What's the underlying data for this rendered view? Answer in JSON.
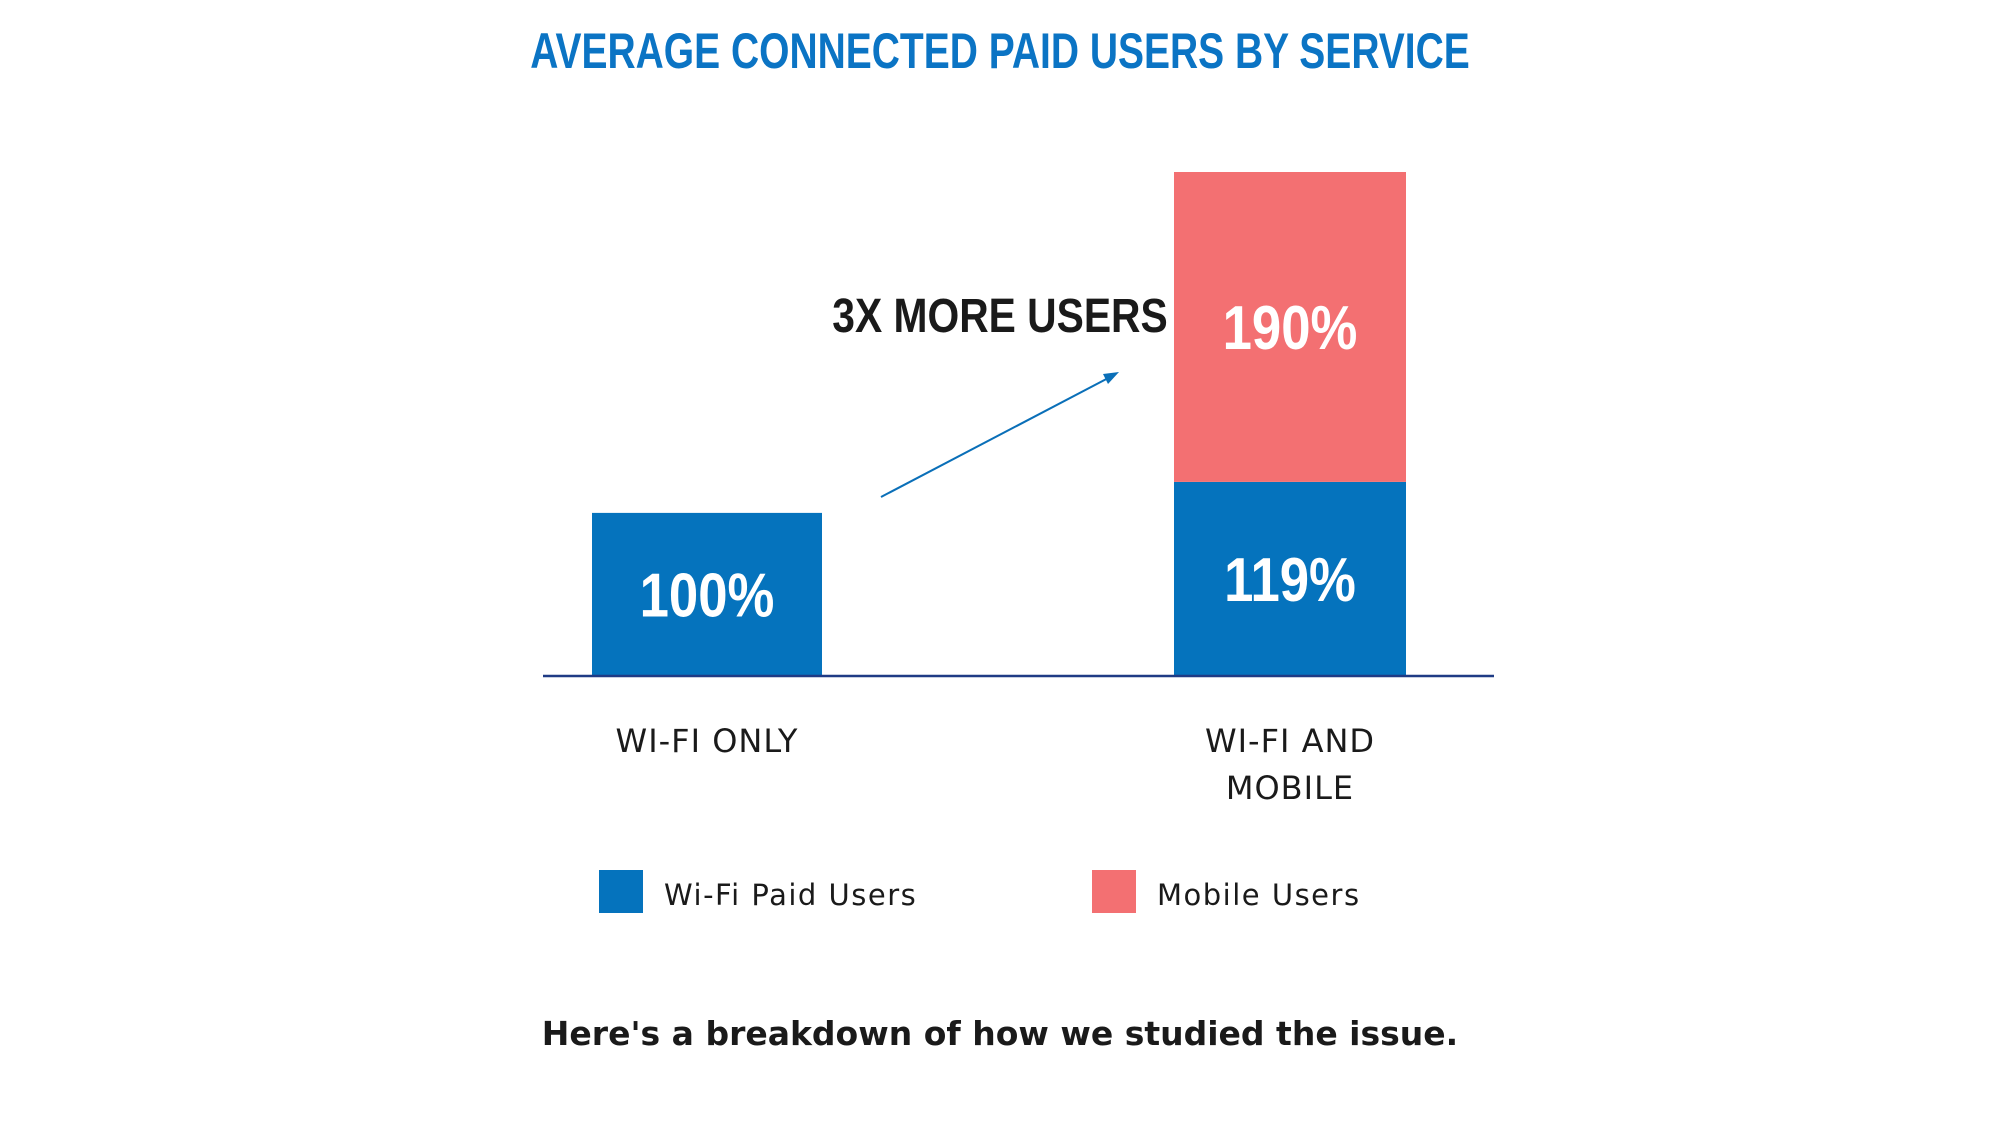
{
  "colors": {
    "blue": "#0573bd",
    "red": "#f37072",
    "title": "#0b74c4",
    "axis": "#1f3b85",
    "arrow": "#0a6fb8",
    "text": "#1a1a1a",
    "white": "#ffffff"
  },
  "chart_data": {
    "type": "bar",
    "stacked": true,
    "title": "AVERAGE CONNECTED PAID USERS BY SERVICE",
    "categories": [
      "WI-FI ONLY",
      "WI-FI AND MOBILE"
    ],
    "category_lines": [
      [
        "WI-FI ONLY"
      ],
      [
        "WI-FI AND",
        "MOBILE"
      ]
    ],
    "series": [
      {
        "name": "Wi-Fi Paid Users",
        "values": [
          100,
          119
        ],
        "labels": [
          "100%",
          "119%"
        ],
        "color": "#0573bd"
      },
      {
        "name": "Mobile Users",
        "values": [
          0,
          190
        ],
        "labels": [
          "",
          "190%"
        ],
        "color": "#f37072"
      }
    ],
    "ylim": [
      0,
      309
    ],
    "annotation": "3X MORE USERS",
    "legend_position": "bottom",
    "grid": false
  },
  "footer": "Here's a breakdown of how we studied the issue."
}
